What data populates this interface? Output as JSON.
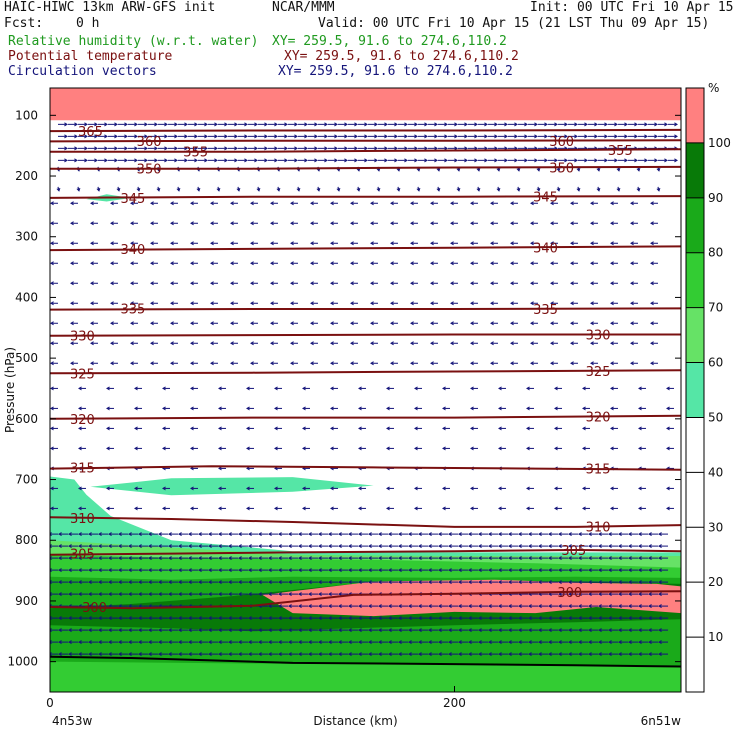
{
  "header": {
    "left1": "HAIC-HIWC 13km ARW-GFS init",
    "center1": "NCAR/MMM",
    "right1": "Init: 00 UTC Fri 10 Apr 15",
    "fcst_label": "Fcst:",
    "fcst_value": "0 h",
    "valid": "Valid: 00 UTC Fri 10 Apr 15 (21 LST Thu 09 Apr 15)",
    "field1": "Relative humidity (w.r.t. water)",
    "field1_xy": "XY= 259.5, 91.6 to 274.6,110.2",
    "field2": "Potential temperature",
    "field2_xy": "XY= 259.5, 91.6 to 274.6,110.2",
    "field3": "Circulation vectors",
    "field3_xy": "XY= 259.5, 91.6 to 274.6,110.2",
    "colors": {
      "rh": "#1f9a1f",
      "theta": "#7a1010",
      "vectors": "#14147a"
    }
  },
  "chart_data": {
    "type": "cross-section",
    "ylabel": "Pressure (hPa)",
    "xlabel": "Distance (km)",
    "y_ticks": [
      100,
      200,
      300,
      400,
      500,
      600,
      700,
      800,
      900,
      1000
    ],
    "x_ticks": [
      0,
      200
    ],
    "ylim": [
      1050,
      55
    ],
    "xlim": [
      0,
      312
    ],
    "left_endpoint": "4n53w",
    "right_endpoint": "6n51w",
    "colorbar": {
      "unit": "%",
      "levels": [
        10,
        20,
        30,
        40,
        50,
        60,
        70,
        80,
        90,
        100
      ],
      "colors": [
        "#ffffff",
        "#ffffff",
        "#ffffff",
        "#ffffff",
        "#ffffff",
        "#55e6a6",
        "#66e266",
        "#33cc33",
        "#1aaa1a",
        "#087a08",
        "#ff8080"
      ]
    },
    "theta_contours": [
      {
        "value": 300,
        "points": [
          [
            0,
            910
          ],
          [
            40,
            912
          ],
          [
            100,
            908
          ],
          [
            150,
            890
          ],
          [
            200,
            888
          ],
          [
            260,
            885
          ],
          [
            312,
            884
          ]
        ],
        "labels": [
          [
            22,
            910
          ],
          [
            257,
            885
          ]
        ]
      },
      {
        "value": 305,
        "points": [
          [
            0,
            824
          ],
          [
            60,
            822
          ],
          [
            120,
            820
          ],
          [
            200,
            818
          ],
          [
            260,
            816
          ],
          [
            312,
            818
          ]
        ],
        "labels": [
          [
            16,
            822
          ],
          [
            259,
            816
          ]
        ]
      },
      {
        "value": 310,
        "points": [
          [
            0,
            762
          ],
          [
            60,
            765
          ],
          [
            120,
            770
          ],
          [
            200,
            778
          ],
          [
            260,
            778
          ],
          [
            312,
            775
          ]
        ],
        "labels": [
          [
            16,
            763
          ],
          [
            271,
            777
          ]
        ]
      },
      {
        "value": 315,
        "points": [
          [
            0,
            682
          ],
          [
            80,
            678
          ],
          [
            160,
            680
          ],
          [
            240,
            682
          ],
          [
            312,
            684
          ]
        ],
        "labels": [
          [
            16,
            680
          ],
          [
            271,
            682
          ]
        ]
      },
      {
        "value": 320,
        "points": [
          [
            0,
            600
          ],
          [
            100,
            598
          ],
          [
            200,
            598
          ],
          [
            312,
            595
          ]
        ],
        "labels": [
          [
            16,
            600
          ],
          [
            271,
            596
          ]
        ]
      },
      {
        "value": 325,
        "points": [
          [
            0,
            525
          ],
          [
            100,
            524
          ],
          [
            200,
            522
          ],
          [
            312,
            520
          ]
        ],
        "labels": [
          [
            16,
            525
          ],
          [
            271,
            521
          ]
        ]
      },
      {
        "value": 330,
        "points": [
          [
            0,
            463
          ],
          [
            100,
            462
          ],
          [
            200,
            461
          ],
          [
            312,
            461
          ]
        ],
        "labels": [
          [
            16,
            463
          ],
          [
            271,
            461
          ]
        ]
      },
      {
        "value": 335,
        "points": [
          [
            0,
            420
          ],
          [
            100,
            419
          ],
          [
            200,
            419
          ],
          [
            312,
            418
          ]
        ],
        "labels": [
          [
            41,
            418
          ],
          [
            245,
            419
          ]
        ]
      },
      {
        "value": 340,
        "points": [
          [
            0,
            322
          ],
          [
            100,
            320
          ],
          [
            200,
            318
          ],
          [
            312,
            316
          ]
        ],
        "labels": [
          [
            41,
            320
          ],
          [
            245,
            318
          ]
        ]
      },
      {
        "value": 345,
        "points": [
          [
            0,
            236
          ],
          [
            100,
            234
          ],
          [
            200,
            234
          ],
          [
            312,
            233
          ]
        ],
        "labels": [
          [
            41,
            236
          ],
          [
            245,
            234
          ]
        ]
      },
      {
        "value": 350,
        "points": [
          [
            0,
            188
          ],
          [
            100,
            188
          ],
          [
            200,
            186
          ],
          [
            312,
            185
          ]
        ],
        "labels": [
          [
            49,
            188
          ],
          [
            253,
            186
          ]
        ]
      },
      {
        "value": 355,
        "points": [
          [
            0,
            160
          ],
          [
            100,
            160
          ],
          [
            200,
            158
          ],
          [
            312,
            156
          ]
        ],
        "labels": [
          [
            72,
            160
          ],
          [
            282,
            157
          ]
        ]
      },
      {
        "value": 360,
        "points": [
          [
            0,
            143
          ],
          [
            100,
            142
          ],
          [
            200,
            142
          ],
          [
            312,
            141
          ]
        ],
        "labels": [
          [
            49,
            142
          ],
          [
            253,
            142
          ]
        ]
      },
      {
        "value": 365,
        "points": [
          [
            0,
            126
          ],
          [
            100,
            125
          ],
          [
            200,
            125
          ],
          [
            312,
            124
          ]
        ],
        "labels": [
          [
            20,
            126
          ]
        ]
      }
    ],
    "rh_regions": [
      {
        "level": 100,
        "points": [
          [
            0,
            55
          ],
          [
            312,
            55
          ],
          [
            312,
            108
          ],
          [
            0,
            108
          ]
        ]
      },
      {
        "level": 50,
        "points": [
          [
            18,
            238
          ],
          [
            28,
            230
          ],
          [
            40,
            236
          ],
          [
            28,
            242
          ]
        ]
      },
      {
        "level": 50,
        "points": [
          [
            20,
            712
          ],
          [
            60,
            698
          ],
          [
            120,
            696
          ],
          [
            160,
            710
          ],
          [
            120,
            720
          ],
          [
            60,
            726
          ]
        ]
      },
      {
        "level": 50,
        "points": [
          [
            0,
            695
          ],
          [
            12,
            700
          ],
          [
            18,
            725
          ],
          [
            30,
            760
          ],
          [
            60,
            800
          ],
          [
            120,
            818
          ],
          [
            200,
            820
          ],
          [
            312,
            820
          ],
          [
            312,
            1050
          ],
          [
            0,
            1050
          ]
        ]
      },
      {
        "level": 60,
        "points": [
          [
            0,
            800
          ],
          [
            60,
            812
          ],
          [
            120,
            824
          ],
          [
            200,
            826
          ],
          [
            312,
            826
          ],
          [
            312,
            1050
          ],
          [
            0,
            1050
          ]
        ]
      },
      {
        "level": 70,
        "points": [
          [
            0,
            824
          ],
          [
            80,
            830
          ],
          [
            160,
            832
          ],
          [
            240,
            838
          ],
          [
            312,
            845
          ],
          [
            312,
            1050
          ],
          [
            0,
            1050
          ]
        ]
      },
      {
        "level": 80,
        "points": [
          [
            0,
            860
          ],
          [
            60,
            865
          ],
          [
            120,
            860
          ],
          [
            200,
            862
          ],
          [
            260,
            860
          ],
          [
            312,
            862
          ],
          [
            312,
            1050
          ],
          [
            0,
            1050
          ]
        ]
      },
      {
        "level": 90,
        "points": [
          [
            0,
            912
          ],
          [
            40,
            905
          ],
          [
            90,
            892
          ],
          [
            150,
            872
          ],
          [
            200,
            866
          ],
          [
            260,
            868
          ],
          [
            312,
            872
          ],
          [
            312,
            930
          ],
          [
            260,
            935
          ],
          [
            200,
            940
          ],
          [
            150,
            945
          ],
          [
            100,
            950
          ],
          [
            60,
            945
          ],
          [
            0,
            940
          ]
        ]
      },
      {
        "level": 100,
        "points": [
          [
            105,
            890
          ],
          [
            160,
            868
          ],
          [
            220,
            865
          ],
          [
            260,
            870
          ],
          [
            300,
            872
          ],
          [
            312,
            876
          ],
          [
            312,
            920
          ],
          [
            270,
            910
          ],
          [
            240,
            920
          ],
          [
            200,
            918
          ],
          [
            160,
            925
          ],
          [
            120,
            920
          ]
        ]
      },
      {
        "level": 80,
        "points": [
          [
            0,
            960
          ],
          [
            80,
            962
          ],
          [
            150,
            968
          ],
          [
            312,
            968
          ],
          [
            312,
            1050
          ],
          [
            0,
            1050
          ]
        ]
      },
      {
        "level": 70,
        "points": [
          [
            0,
            1000
          ],
          [
            100,
            1003
          ],
          [
            200,
            1005
          ],
          [
            312,
            1008
          ],
          [
            312,
            1050
          ],
          [
            0,
            1050
          ]
        ]
      }
    ],
    "terrain": {
      "points": [
        [
          0,
          992
        ],
        [
          40,
          994
        ],
        [
          80,
          998
        ],
        [
          120,
          1002
        ],
        [
          200,
          1004
        ],
        [
          260,
          1006
        ],
        [
          312,
          1008
        ]
      ]
    },
    "wind_layers": [
      {
        "p_top": 105,
        "p_bot": 175,
        "dir": "east",
        "density": "high"
      },
      {
        "p_top": 175,
        "p_bot": 235,
        "dir": "mixed",
        "density": "medium"
      },
      {
        "p_top": 235,
        "p_bot": 540,
        "dir": "west",
        "density": "medium"
      },
      {
        "p_top": 540,
        "p_bot": 780,
        "dir": "west",
        "density": "low"
      },
      {
        "p_top": 780,
        "p_bot": 1000,
        "dir": "west",
        "density": "high"
      }
    ]
  }
}
